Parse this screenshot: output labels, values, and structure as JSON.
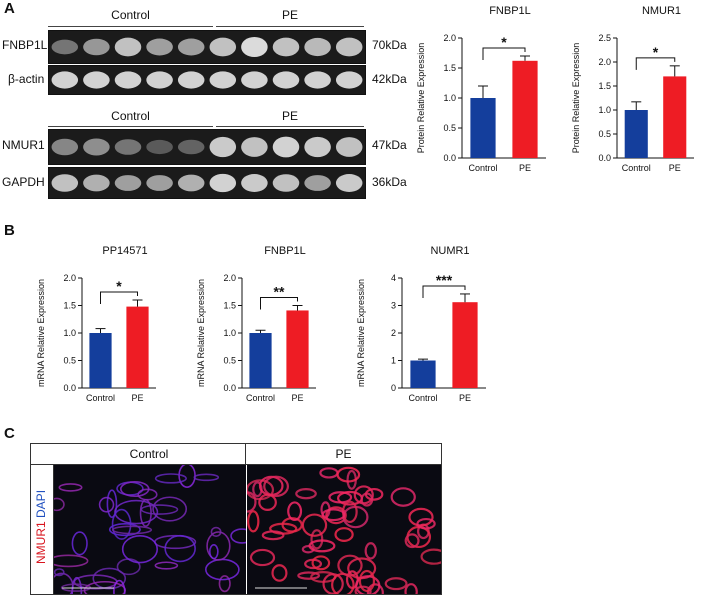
{
  "panels": {
    "A": "A",
    "B": "B",
    "C": "C"
  },
  "western": {
    "top": {
      "group_labels": [
        "Control",
        "PE"
      ],
      "rows": [
        {
          "label": "FNBP1L",
          "kda": "70kDa",
          "intensity": [
            0.35,
            0.55,
            0.8,
            0.6,
            0.6,
            0.8,
            0.95,
            0.8,
            0.75,
            0.8
          ]
        },
        {
          "label": "β-actin",
          "kda": "42kDa",
          "intensity": [
            0.9,
            0.9,
            0.9,
            0.9,
            0.9,
            0.9,
            0.9,
            0.9,
            0.9,
            0.9
          ]
        }
      ]
    },
    "bottom": {
      "group_labels": [
        "Control",
        "PE"
      ],
      "rows": [
        {
          "label": "NMUR1",
          "kda": "47kDa",
          "intensity": [
            0.45,
            0.5,
            0.35,
            0.2,
            0.25,
            0.85,
            0.8,
            0.9,
            0.85,
            0.8
          ]
        },
        {
          "label": "GAPDH",
          "kda": "36kDa",
          "intensity": [
            0.8,
            0.7,
            0.6,
            0.6,
            0.7,
            0.9,
            0.85,
            0.8,
            0.6,
            0.85
          ]
        }
      ]
    }
  },
  "chart_data": [
    {
      "type": "bar",
      "title": "FNBP1L",
      "ylabel": "Protein Relative Expression",
      "categories": [
        "Control",
        "PE"
      ],
      "values": [
        1.0,
        1.62
      ],
      "errors": [
        0.2,
        0.08
      ],
      "ylim": [
        0,
        2.0
      ],
      "yticks": [
        "0.0",
        "0.5",
        "1.0",
        "1.5",
        "2.0"
      ],
      "significance": "*"
    },
    {
      "type": "bar",
      "title": "NMUR1",
      "ylabel": "Protein Relative Expression",
      "categories": [
        "Control",
        "PE"
      ],
      "values": [
        1.0,
        1.7
      ],
      "errors": [
        0.17,
        0.22
      ],
      "ylim": [
        0,
        2.5
      ],
      "yticks": [
        "0.0",
        "0.5",
        "1.0",
        "1.5",
        "2.0",
        "2.5"
      ],
      "significance": "*"
    },
    {
      "type": "bar",
      "title": "PP14571",
      "ylabel": "mRNA Relative Expression",
      "categories": [
        "Control",
        "PE"
      ],
      "values": [
        1.0,
        1.48
      ],
      "errors": [
        0.08,
        0.12
      ],
      "ylim": [
        0,
        2.0
      ],
      "yticks": [
        "0.0",
        "0.5",
        "1.0",
        "1.5",
        "2.0"
      ],
      "significance": "*"
    },
    {
      "type": "bar",
      "title": "FNBP1L",
      "ylabel": "mRNA Relative Expression",
      "categories": [
        "Control",
        "PE"
      ],
      "values": [
        1.0,
        1.41
      ],
      "errors": [
        0.05,
        0.09
      ],
      "ylim": [
        0,
        2.0
      ],
      "yticks": [
        "0.0",
        "0.5",
        "1.0",
        "1.5",
        "2.0"
      ],
      "significance": "**"
    },
    {
      "type": "bar",
      "title": "NUMR1",
      "ylabel": "mRNA Relative Expression",
      "categories": [
        "Control",
        "PE"
      ],
      "values": [
        1.0,
        3.12
      ],
      "errors": [
        0.05,
        0.3
      ],
      "ylim": [
        0,
        4
      ],
      "yticks": [
        "0",
        "1",
        "2",
        "3",
        "4"
      ],
      "significance": "***"
    }
  ],
  "bar_colors": {
    "control": "#143e9c",
    "pe": "#ee1c24"
  },
  "immuno": {
    "headers": [
      "Control",
      "PE"
    ],
    "side_label_marker": "NMUR1",
    "side_label_stain": "DAPI",
    "marker_color": "#d9141e",
    "stain_color": "#1f4fbf"
  }
}
